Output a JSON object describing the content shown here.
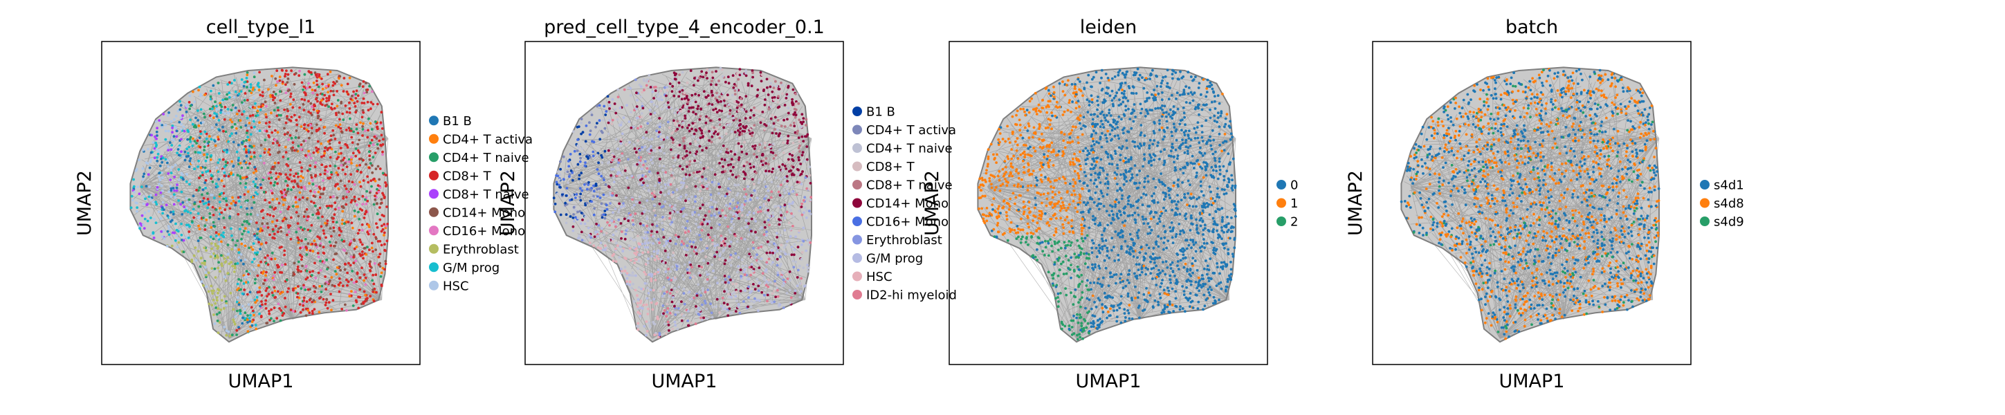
{
  "figure": {
    "panels": [
      {
        "title": "cell_type_l1",
        "xlabel": "UMAP1",
        "ylabel": "UMAP2",
        "legend": [
          {
            "label": "B1 B",
            "color": "#1f77b4"
          },
          {
            "label": "CD4+ T activa",
            "color": "#ff7f0e"
          },
          {
            "label": "CD4+ T naive",
            "color": "#279e68"
          },
          {
            "label": "CD8+ T",
            "color": "#d62728"
          },
          {
            "label": "CD8+ T naive",
            "color": "#aa40fc"
          },
          {
            "label": "CD14+ Mono",
            "color": "#8c564b"
          },
          {
            "label": "CD16+ Mono",
            "color": "#e377c2"
          },
          {
            "label": "Erythroblast",
            "color": "#b5bd61"
          },
          {
            "label": "G/M prog",
            "color": "#17becf"
          },
          {
            "label": "HSC",
            "color": "#aec7e8"
          }
        ]
      },
      {
        "title": "pred_cell_type_4_encoder_0.1",
        "xlabel": "UMAP1",
        "ylabel": "UMAP2",
        "legend": [
          {
            "label": "B1 B",
            "color": "#023fa5"
          },
          {
            "label": "CD4+ T activa",
            "color": "#7d87b9"
          },
          {
            "label": "CD4+ T naive",
            "color": "#bec1d4"
          },
          {
            "label": "CD8+ T",
            "color": "#d6bcc0"
          },
          {
            "label": "CD8+ T naive",
            "color": "#bb7784"
          },
          {
            "label": "CD14+ Mono",
            "color": "#8e063b"
          },
          {
            "label": "CD16+ Mono",
            "color": "#4a6fe3"
          },
          {
            "label": "Erythroblast",
            "color": "#8595e1"
          },
          {
            "label": "G/M prog",
            "color": "#b5bbe3"
          },
          {
            "label": "HSC",
            "color": "#e6afb9"
          },
          {
            "label": "ID2-hi myeloid",
            "color": "#e07b91"
          }
        ]
      },
      {
        "title": "leiden",
        "xlabel": "UMAP1",
        "ylabel": "UMAP2",
        "legend": [
          {
            "label": "0",
            "color": "#1f77b4"
          },
          {
            "label": "1",
            "color": "#ff7f0e"
          },
          {
            "label": "2",
            "color": "#279e68"
          }
        ]
      },
      {
        "title": "batch",
        "xlabel": "UMAP1",
        "ylabel": "UMAP2",
        "legend": [
          {
            "label": "s4d1",
            "color": "#1f77b4"
          },
          {
            "label": "s4d8",
            "color": "#ff7f0e"
          },
          {
            "label": "s4d9",
            "color": "#279e68"
          }
        ]
      }
    ]
  },
  "chart_data": [
    {
      "type": "scatter",
      "title": "cell_type_l1",
      "xlabel": "UMAP1",
      "ylabel": "UMAP2",
      "grid": false,
      "legend_placement": "right",
      "series": [
        {
          "name": "B1 B"
        },
        {
          "name": "CD4+ T activa"
        },
        {
          "name": "CD4+ T naive"
        },
        {
          "name": "CD8+ T"
        },
        {
          "name": "CD8+ T naive"
        },
        {
          "name": "CD14+ Mono"
        },
        {
          "name": "CD16+ Mono"
        },
        {
          "name": "Erythroblast"
        },
        {
          "name": "G/M prog"
        },
        {
          "name": "HSC"
        }
      ]
    },
    {
      "type": "scatter",
      "title": "pred_cell_type_4_encoder_0.1",
      "xlabel": "UMAP1",
      "ylabel": "UMAP2",
      "grid": false,
      "legend_placement": "right",
      "series": [
        {
          "name": "B1 B"
        },
        {
          "name": "CD4+ T activa"
        },
        {
          "name": "CD4+ T naive"
        },
        {
          "name": "CD8+ T"
        },
        {
          "name": "CD8+ T naive"
        },
        {
          "name": "CD14+ Mono"
        },
        {
          "name": "CD16+ Mono"
        },
        {
          "name": "Erythroblast"
        },
        {
          "name": "G/M prog"
        },
        {
          "name": "HSC"
        },
        {
          "name": "ID2-hi myeloid"
        }
      ]
    },
    {
      "type": "scatter",
      "title": "leiden",
      "xlabel": "UMAP1",
      "ylabel": "UMAP2",
      "grid": false,
      "legend_placement": "right",
      "series": [
        {
          "name": "0"
        },
        {
          "name": "1"
        },
        {
          "name": "2"
        }
      ]
    },
    {
      "type": "scatter",
      "title": "batch",
      "xlabel": "UMAP1",
      "ylabel": "UMAP2",
      "grid": false,
      "legend_placement": "right",
      "series": [
        {
          "name": "s4d1"
        },
        {
          "name": "s4d8"
        },
        {
          "name": "s4d9"
        }
      ]
    }
  ]
}
